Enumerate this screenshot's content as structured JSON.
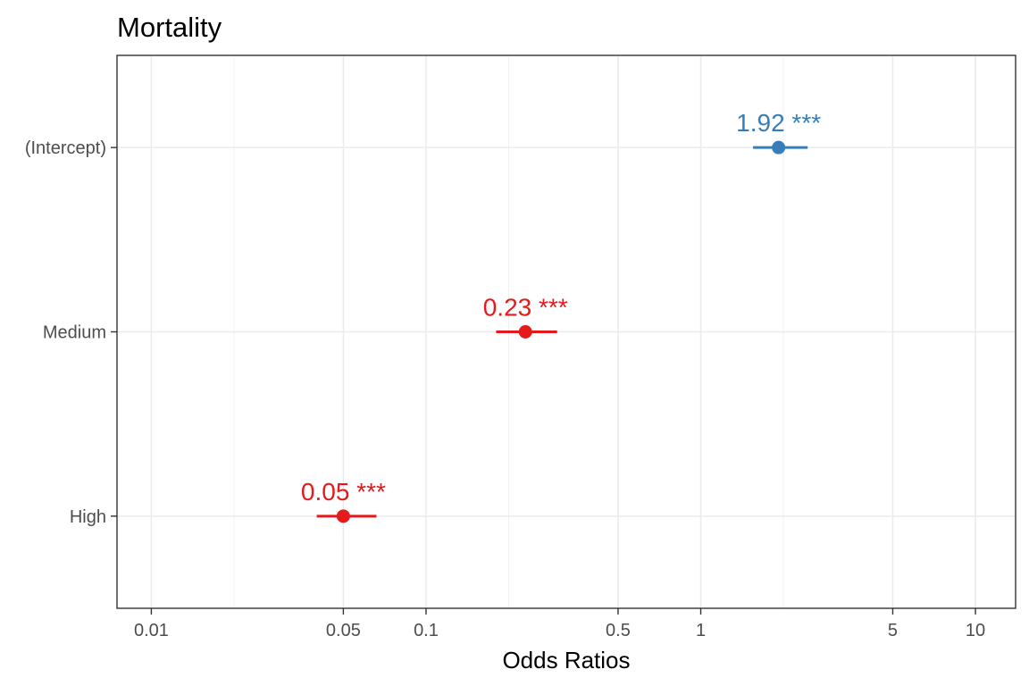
{
  "chart_data": {
    "type": "scatter",
    "subtype": "forest-plot",
    "title": "Mortality",
    "xlabel": "Odds Ratios",
    "ylabel": "",
    "x_scale": "log",
    "xlim": [
      0.0075,
      14
    ],
    "x_ticks": [
      {
        "value": 0.01,
        "label": "0.01"
      },
      {
        "value": 0.05,
        "label": "0.05"
      },
      {
        "value": 0.1,
        "label": "0.1"
      },
      {
        "value": 0.5,
        "label": "0.5"
      },
      {
        "value": 1,
        "label": "1"
      },
      {
        "value": 5,
        "label": "5"
      },
      {
        "value": 10,
        "label": "10"
      }
    ],
    "x_minor_gridlines": [
      0.02,
      0.2,
      2
    ],
    "categories": [
      "(Intercept)",
      "Medium",
      "High"
    ],
    "points": [
      {
        "term": "(Intercept)",
        "estimate": 1.92,
        "ci_low": 1.55,
        "ci_high": 2.45,
        "label": "1.92 ***",
        "color": "#377EB8"
      },
      {
        "term": "Medium",
        "estimate": 0.23,
        "ci_low": 0.18,
        "ci_high": 0.3,
        "label": "0.23 ***",
        "color": "#E41A1C"
      },
      {
        "term": "High",
        "estimate": 0.05,
        "ci_low": 0.04,
        "ci_high": 0.066,
        "label": "0.05 ***",
        "color": "#E41A1C"
      }
    ],
    "grid": true,
    "legend": "none"
  }
}
